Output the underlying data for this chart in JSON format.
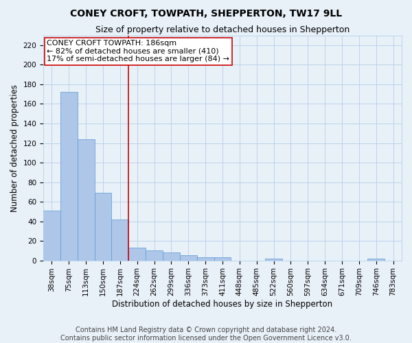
{
  "title": "CONEY CROFT, TOWPATH, SHEPPERTON, TW17 9LL",
  "subtitle": "Size of property relative to detached houses in Shepperton",
  "xlabel": "Distribution of detached houses by size in Shepperton",
  "ylabel": "Number of detached properties",
  "categories": [
    "38sqm",
    "75sqm",
    "113sqm",
    "150sqm",
    "187sqm",
    "224sqm",
    "262sqm",
    "299sqm",
    "336sqm",
    "373sqm",
    "411sqm",
    "448sqm",
    "485sqm",
    "522sqm",
    "560sqm",
    "597sqm",
    "634sqm",
    "671sqm",
    "709sqm",
    "746sqm",
    "783sqm"
  ],
  "values": [
    51,
    172,
    124,
    69,
    42,
    13,
    10,
    8,
    5,
    3,
    3,
    0,
    0,
    2,
    0,
    0,
    0,
    0,
    0,
    2,
    0
  ],
  "bar_color": "#aec6e8",
  "bar_edge_color": "#5b9bd5",
  "vline_x": 4.5,
  "vline_color": "#cc0000",
  "annotation_line1": "CONEY CROFT TOWPATH: 186sqm",
  "annotation_line2": "← 82% of detached houses are smaller (410)",
  "annotation_line3": "17% of semi-detached houses are larger (84) →",
  "annotation_box_color": "#cc0000",
  "annotation_box_bg": "#ffffff",
  "ylim": [
    0,
    230
  ],
  "yticks": [
    0,
    20,
    40,
    60,
    80,
    100,
    120,
    140,
    160,
    180,
    200,
    220
  ],
  "footer_line1": "Contains HM Land Registry data © Crown copyright and database right 2024.",
  "footer_line2": "Contains public sector information licensed under the Open Government Licence v3.0.",
  "bg_color": "#e8f0f8",
  "plot_bg_color": "#e8f0f8",
  "title_fontsize": 10,
  "subtitle_fontsize": 9,
  "axis_label_fontsize": 8.5,
  "tick_fontsize": 7.5,
  "footer_fontsize": 7,
  "annotation_fontsize": 8
}
